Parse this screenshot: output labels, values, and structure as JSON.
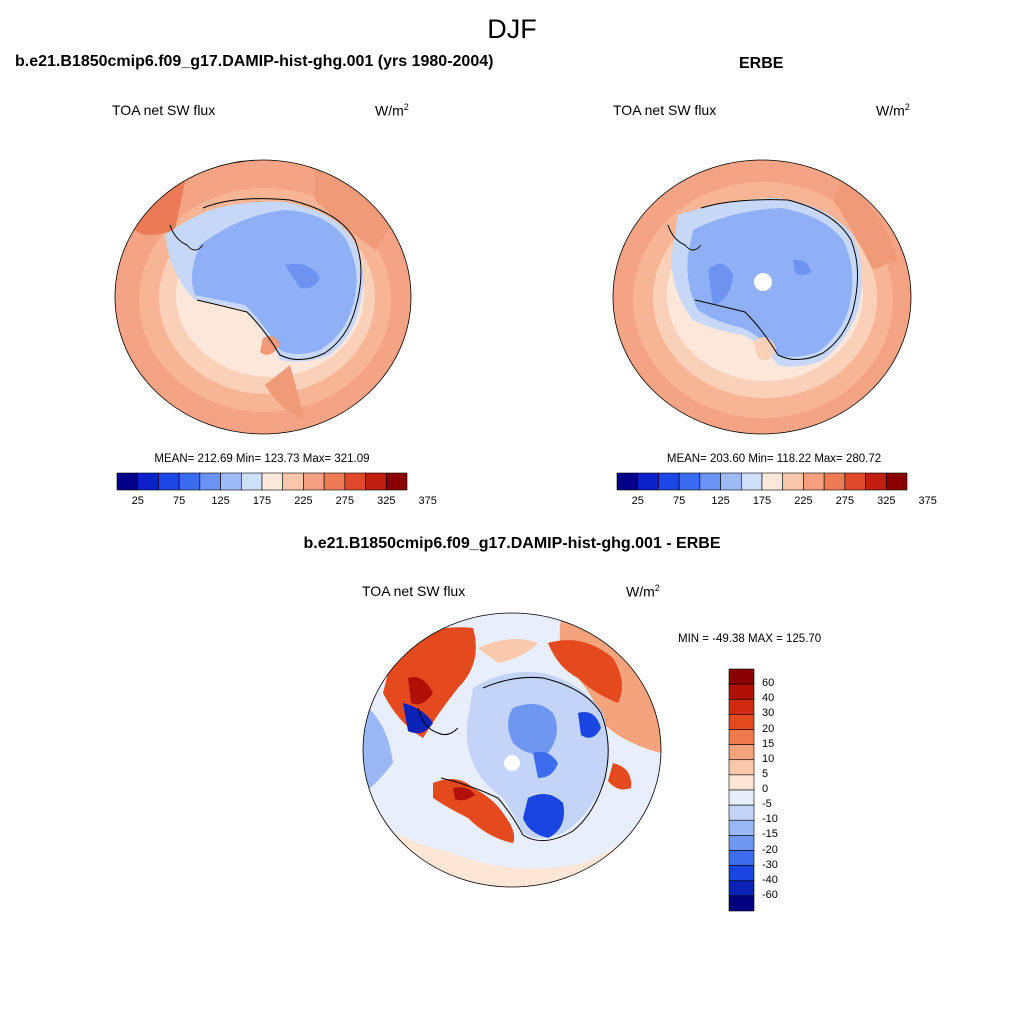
{
  "title": "DJF",
  "panels": [
    {
      "title": "b.e21.B1850cmip6.f09_g17.DAMIP-hist-ghg.001 (yrs 1980-2004)",
      "variable": "TOA net SW flux",
      "units_base": "W/m",
      "units_exp": "2",
      "stats": "MEAN= 212.69  Min= 123.73  Max= 321.09",
      "colorbar_ticks": [
        "25",
        "75",
        "125",
        "175",
        "225",
        "275",
        "325",
        "375"
      ]
    },
    {
      "title": "ERBE",
      "variable": "TOA net SW flux",
      "units_base": "W/m",
      "units_exp": "2",
      "stats": "MEAN= 203.60  Min= 118.22  Max= 280.72",
      "colorbar_ticks": [
        "25",
        "75",
        "125",
        "175",
        "225",
        "275",
        "325",
        "375"
      ]
    },
    {
      "title": "b.e21.B1850cmip6.f09_g17.DAMIP-hist-ghg.001 - ERBE",
      "variable": "TOA net SW flux",
      "units_base": "W/m",
      "units_exp": "2",
      "stats": "MIN = -49.38 MAX = 125.70",
      "colorbar_ticks": [
        "60",
        "40",
        "30",
        "20",
        "15",
        "10",
        "5",
        "0",
        "-5",
        "-10",
        "-15",
        "-20",
        "-30",
        "-40",
        "-60"
      ]
    }
  ],
  "colors": {
    "abs_scale": [
      "#00008a",
      "#0a20c8",
      "#1d46e6",
      "#3a6cf0",
      "#6a93f3",
      "#9dbbf7",
      "#cddff9",
      "#fde9dc",
      "#f9c6ac",
      "#f5a17f",
      "#f07a55",
      "#e04a2a",
      "#c01e10",
      "#8a0000"
    ],
    "diff_scale": [
      "#8a0000",
      "#b01008",
      "#d02a10",
      "#e54a1e",
      "#f07a4e",
      "#f5a37c",
      "#fac8ab",
      "#fde6d6",
      "#e6eefb",
      "#c3d4f8",
      "#9ab8f5",
      "#6f97f2",
      "#3e6cee",
      "#1b45e0",
      "#0a22b8",
      "#000080"
    ],
    "ocean_abs": "#f4a484",
    "ice_abs": "#8fb0f6",
    "ocean_diff": "#e8eefc"
  }
}
